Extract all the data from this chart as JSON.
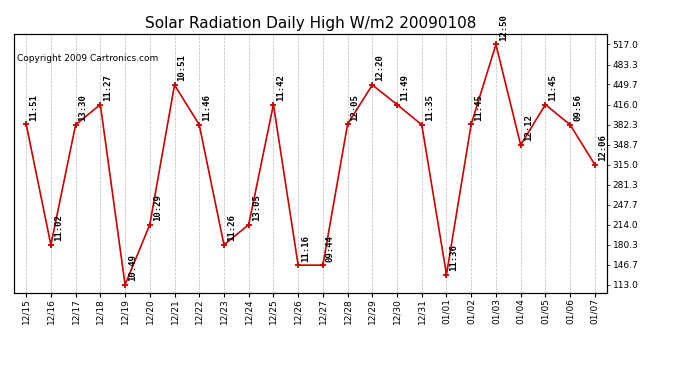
{
  "title": "Solar Radiation Daily High W/m2 20090108",
  "copyright": "Copyright 2009 Cartronics.com",
  "dates": [
    "12/15",
    "12/16",
    "12/17",
    "12/18",
    "12/19",
    "12/20",
    "12/21",
    "12/22",
    "12/23",
    "12/24",
    "12/25",
    "12/26",
    "12/27",
    "12/28",
    "12/29",
    "12/30",
    "12/31",
    "01/01",
    "01/02",
    "01/03",
    "01/04",
    "01/05",
    "01/06",
    "01/07"
  ],
  "values": [
    383,
    180,
    382,
    416,
    113,
    214,
    449,
    382,
    180,
    214,
    416,
    146,
    146,
    383,
    449,
    416,
    382,
    130,
    383,
    517,
    348,
    416,
    382,
    315
  ],
  "time_labels": [
    "11:51",
    "11:02",
    "13:30",
    "11:27",
    "10:49",
    "10:29",
    "10:51",
    "11:46",
    "11:26",
    "13:05",
    "11:42",
    "11:16",
    "09:44",
    "12:05",
    "12:20",
    "11:49",
    "11:35",
    "11:36",
    "11:45",
    "12:50",
    "12:12",
    "11:45",
    "09:56",
    "12:06"
  ],
  "line_color": "#cc0000",
  "marker_color": "#cc0000",
  "bg_color": "#ffffff",
  "plot_bg_color": "#ffffff",
  "grid_color": "#bbbbbb",
  "title_fontsize": 11,
  "label_fontsize": 6.5,
  "ytick_labels": [
    "113.0",
    "146.7",
    "180.3",
    "214.0",
    "247.7",
    "281.3",
    "315.0",
    "348.7",
    "382.3",
    "416.0",
    "449.7",
    "483.3",
    "517.0"
  ],
  "yticks": [
    113.0,
    146.7,
    180.3,
    214.0,
    247.7,
    281.3,
    315.0,
    348.7,
    382.3,
    416.0,
    449.7,
    483.3,
    517.0
  ],
  "ylim": [
    100,
    535
  ],
  "copyright_fontsize": 6.5,
  "xtick_fontsize": 6.5,
  "ytick_fontsize": 6.5
}
